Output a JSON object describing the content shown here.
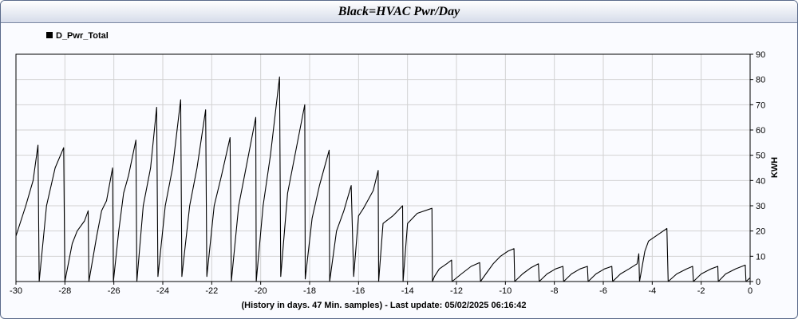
{
  "title": "Black=HVAC Pwr/Day",
  "footer": "(History in days. 47 Min. samples) - Last update: 05/02/2025 06:16:42",
  "chart_data": {
    "type": "line",
    "title": "Black=HVAC Pwr/Day",
    "xlabel": "(History in days. 47 Min. samples) - Last update: 05/02/2025 06:16:42",
    "ylabel": "KWH",
    "xlim": [
      -30,
      0
    ],
    "ylim": [
      0,
      90
    ],
    "xticks": [
      -30,
      -28,
      -26,
      -24,
      -22,
      -20,
      -18,
      -16,
      -14,
      -12,
      -10,
      -8,
      -6,
      -4,
      -2,
      0
    ],
    "yticks": [
      0,
      10,
      20,
      30,
      40,
      50,
      60,
      70,
      80,
      90
    ],
    "grid": true,
    "legend_position": "top-left",
    "series": [
      {
        "name": "D_Pwr_Total",
        "color": "#000000",
        "points": [
          [
            -30.0,
            18
          ],
          [
            -29.6,
            30
          ],
          [
            -29.3,
            40
          ],
          [
            -29.1,
            54
          ],
          [
            -29.05,
            0
          ],
          [
            -28.75,
            30
          ],
          [
            -28.4,
            45
          ],
          [
            -28.05,
            53
          ],
          [
            -28.0,
            0
          ],
          [
            -27.7,
            15
          ],
          [
            -27.5,
            20
          ],
          [
            -27.2,
            24
          ],
          [
            -27.05,
            28
          ],
          [
            -27.02,
            0
          ],
          [
            -26.7,
            18
          ],
          [
            -26.5,
            28
          ],
          [
            -26.3,
            32
          ],
          [
            -26.05,
            45
          ],
          [
            -26.02,
            0
          ],
          [
            -25.8,
            20
          ],
          [
            -25.6,
            35
          ],
          [
            -25.4,
            42
          ],
          [
            -25.1,
            56
          ],
          [
            -25.06,
            0
          ],
          [
            -24.8,
            30
          ],
          [
            -24.5,
            45
          ],
          [
            -24.25,
            69
          ],
          [
            -24.2,
            2
          ],
          [
            -23.9,
            30
          ],
          [
            -23.6,
            45
          ],
          [
            -23.27,
            72
          ],
          [
            -23.22,
            2
          ],
          [
            -22.9,
            30
          ],
          [
            -22.6,
            45
          ],
          [
            -22.25,
            68
          ],
          [
            -22.2,
            2
          ],
          [
            -21.9,
            30
          ],
          [
            -21.6,
            42
          ],
          [
            -21.25,
            57
          ],
          [
            -21.2,
            0
          ],
          [
            -20.9,
            30
          ],
          [
            -20.6,
            45
          ],
          [
            -20.2,
            65
          ],
          [
            -20.18,
            0
          ],
          [
            -19.9,
            30
          ],
          [
            -19.6,
            50
          ],
          [
            -19.23,
            81
          ],
          [
            -19.18,
            2
          ],
          [
            -18.9,
            35
          ],
          [
            -18.6,
            50
          ],
          [
            -18.2,
            70
          ],
          [
            -18.18,
            1
          ],
          [
            -17.9,
            25
          ],
          [
            -17.6,
            38
          ],
          [
            -17.2,
            52
          ],
          [
            -17.18,
            0
          ],
          [
            -16.9,
            20
          ],
          [
            -16.6,
            28
          ],
          [
            -16.3,
            38
          ],
          [
            -16.2,
            2
          ],
          [
            -16.0,
            26
          ],
          [
            -15.8,
            29
          ],
          [
            -15.4,
            36
          ],
          [
            -15.2,
            44
          ],
          [
            -15.18,
            0
          ],
          [
            -15.0,
            23
          ],
          [
            -14.6,
            26
          ],
          [
            -14.2,
            30
          ],
          [
            -14.18,
            0
          ],
          [
            -14.0,
            23
          ],
          [
            -13.6,
            27
          ],
          [
            -13.0,
            29
          ],
          [
            -12.98,
            0
          ],
          [
            -12.9,
            2
          ],
          [
            -12.7,
            5
          ],
          [
            -12.4,
            7
          ],
          [
            -12.2,
            8.5
          ],
          [
            -12.18,
            0
          ],
          [
            -11.8,
            3
          ],
          [
            -11.4,
            6
          ],
          [
            -11.05,
            7.5
          ],
          [
            -11.02,
            0
          ],
          [
            -10.8,
            3
          ],
          [
            -10.5,
            7
          ],
          [
            -10.2,
            10
          ],
          [
            -9.9,
            12
          ],
          [
            -9.65,
            13
          ],
          [
            -9.62,
            0
          ],
          [
            -9.3,
            3
          ],
          [
            -8.95,
            5.5
          ],
          [
            -8.65,
            7
          ],
          [
            -8.62,
            0
          ],
          [
            -8.3,
            3
          ],
          [
            -7.95,
            5
          ],
          [
            -7.65,
            6
          ],
          [
            -7.62,
            0
          ],
          [
            -7.3,
            3
          ],
          [
            -6.95,
            5
          ],
          [
            -6.65,
            6
          ],
          [
            -6.62,
            0
          ],
          [
            -6.3,
            3
          ],
          [
            -5.95,
            5
          ],
          [
            -5.65,
            6
          ],
          [
            -5.62,
            0
          ],
          [
            -5.3,
            3
          ],
          [
            -4.95,
            5
          ],
          [
            -4.62,
            7
          ],
          [
            -4.55,
            11
          ],
          [
            -4.52,
            0
          ],
          [
            -4.3,
            12
          ],
          [
            -4.15,
            16
          ],
          [
            -3.7,
            19
          ],
          [
            -3.4,
            21
          ],
          [
            -3.35,
            0
          ],
          [
            -3.0,
            3
          ],
          [
            -2.6,
            5
          ],
          [
            -2.35,
            6
          ],
          [
            -2.32,
            0
          ],
          [
            -2.0,
            3
          ],
          [
            -1.6,
            5
          ],
          [
            -1.32,
            6
          ],
          [
            -1.3,
            0
          ],
          [
            -1.0,
            3
          ],
          [
            -0.6,
            5
          ],
          [
            -0.2,
            6.5
          ],
          [
            -0.17,
            0
          ],
          [
            0.0,
            1.5
          ]
        ]
      }
    ]
  }
}
